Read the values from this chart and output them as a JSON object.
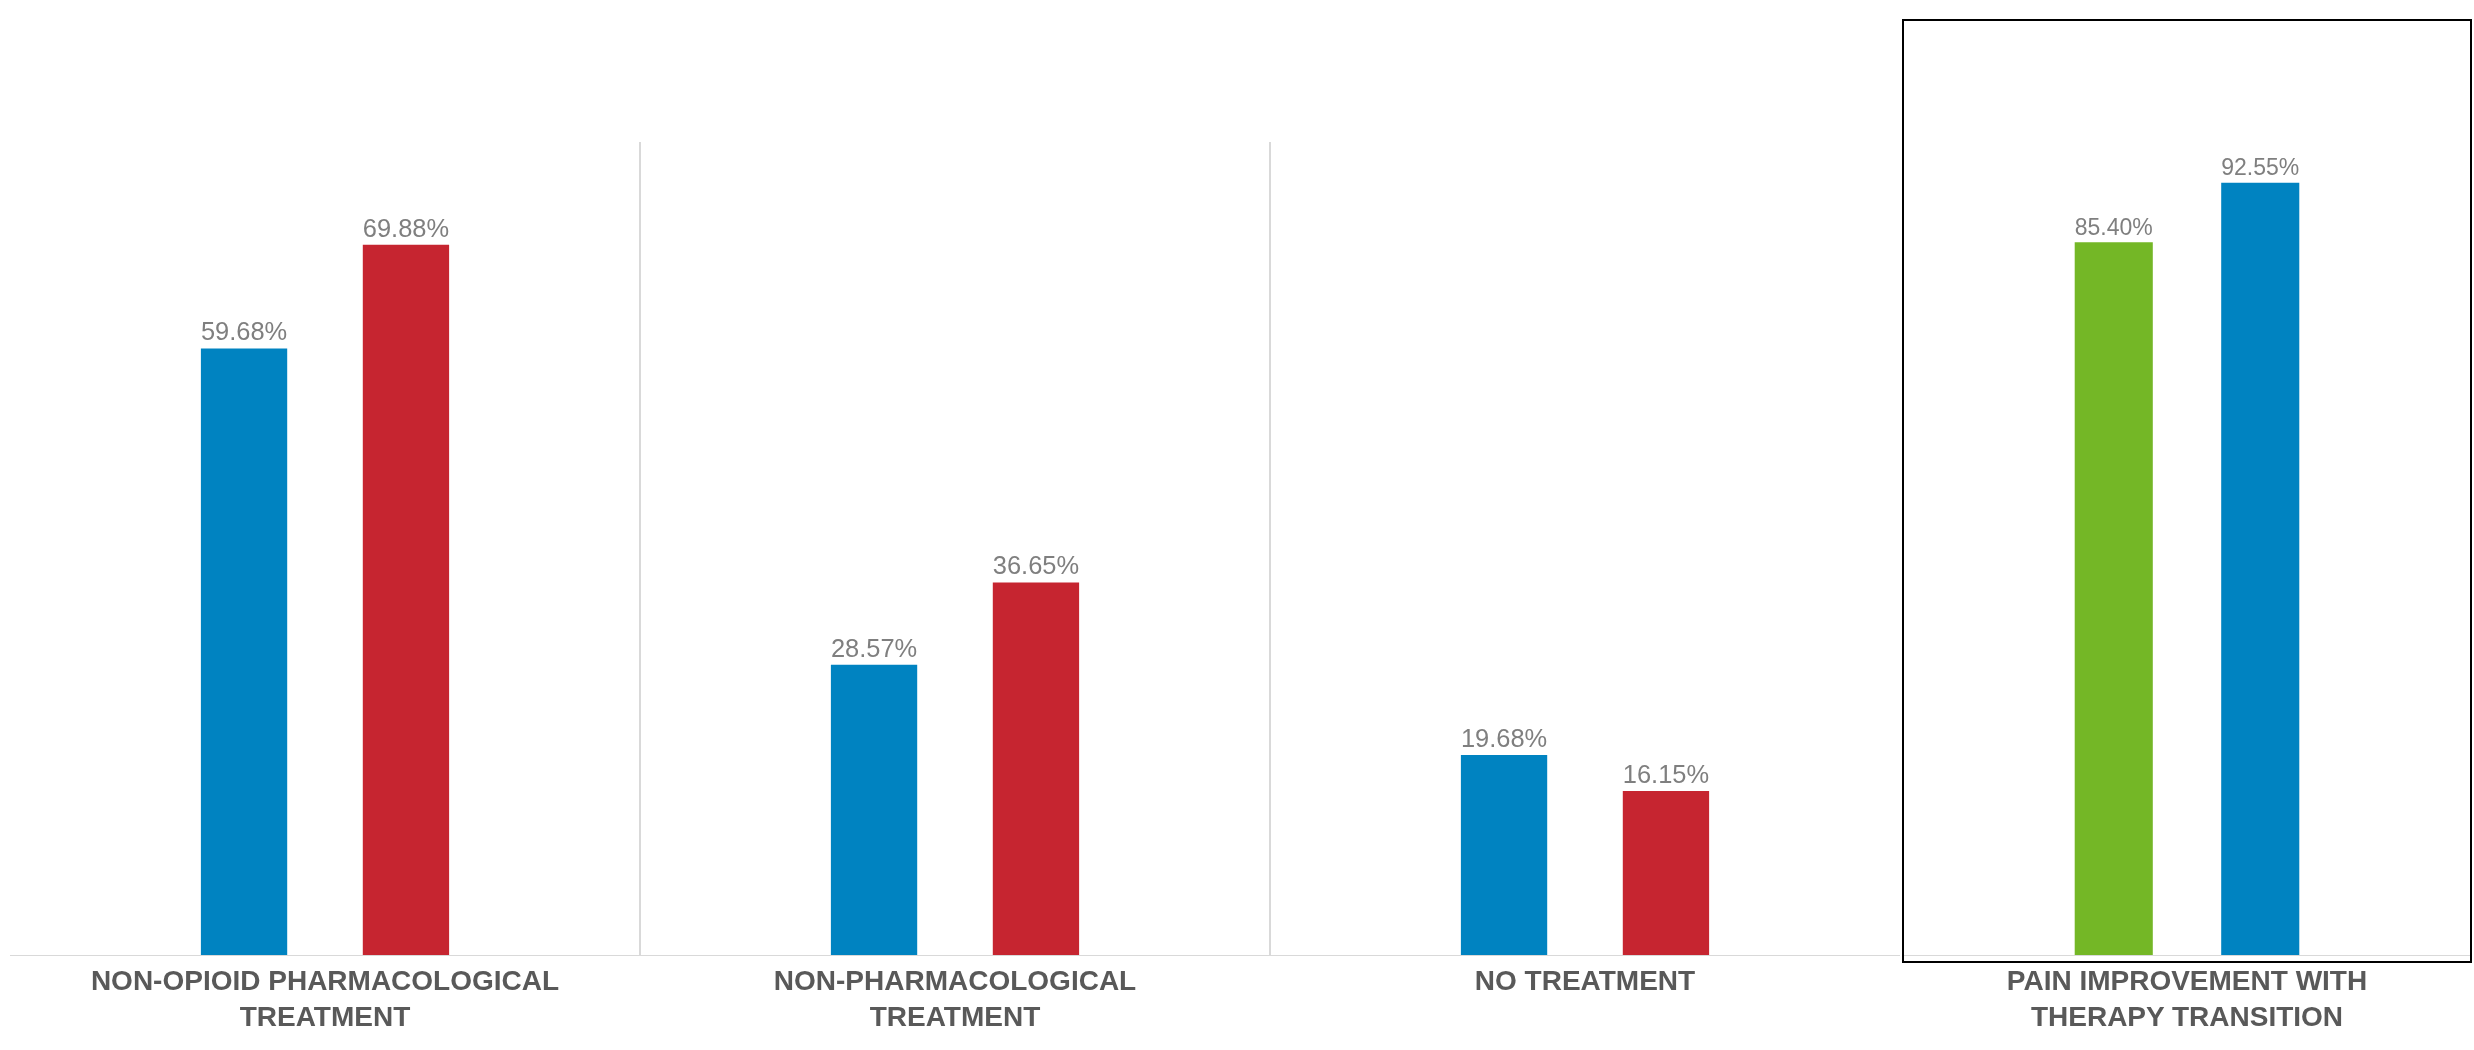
{
  "chart_data": [
    {
      "type": "bar",
      "categories": [
        "NON-OPIOID PHARMACOLOGICAL TREATMENT",
        "NON-PHARMACOLOGICAL TREATMENT",
        "NO TREATMENT"
      ],
      "series": [
        {
          "colors": [
            "#0083c1",
            "#0083c1",
            "#0083c1"
          ],
          "values": [
            59.68,
            28.57,
            19.68
          ],
          "value_labels": [
            "59.68%",
            "28.57%",
            "19.68%"
          ]
        },
        {
          "colors": [
            "#c62530",
            "#c62530",
            "#c62530"
          ],
          "values": [
            69.88,
            36.65,
            16.15
          ],
          "value_labels": [
            "69.88%",
            "36.65%",
            "16.15%"
          ]
        }
      ],
      "ylim": [
        0,
        80
      ],
      "tick_labels": "x",
      "grid": false
    },
    {
      "type": "bar",
      "categories": [
        "PAIN IMPROVEMENT WITH THERAPY TRANSITION"
      ],
      "series": [
        {
          "colors": [
            "#74b726"
          ],
          "values": [
            85.4
          ],
          "value_labels": [
            "85.40%"
          ]
        },
        {
          "colors": [
            "#0083c1"
          ],
          "values": [
            92.55
          ],
          "value_labels": [
            "92.55%"
          ]
        }
      ],
      "tick_labels": "x",
      "grid": false
    }
  ]
}
